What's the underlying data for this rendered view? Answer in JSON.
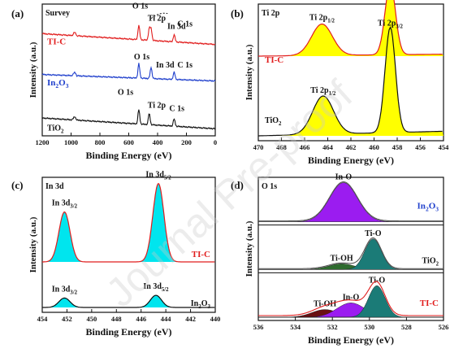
{
  "watermark": "Journal Pre-proof",
  "chart_data": [
    {
      "type": "line",
      "panel_label": "(a)",
      "title": "Survey",
      "xlabel": "Binding Energy (eV)",
      "ylabel": "Intensity (a.u.)",
      "xlim": [
        1200,
        0
      ],
      "x_reversed": true,
      "xticks": [
        1200,
        1000,
        800,
        600,
        400,
        200,
        0
      ],
      "series": [
        {
          "name": "TI-C",
          "color": "#e11d1d",
          "baseline": 0.78,
          "peaks": [
            {
              "label": "O 1s",
              "x": 530
            },
            {
              "label": "Ti 2p",
              "x": 458
            },
            {
              "label": "In 3d",
              "x": 445
            },
            {
              "label": "C 1s",
              "x": 285
            }
          ]
        },
        {
          "name": "In2O3",
          "color": "#1f3fcc",
          "baseline": 0.47,
          "peaks": [
            {
              "label": "O 1s",
              "x": 530
            },
            {
              "label": "In 3d",
              "x": 445
            },
            {
              "label": "C 1s",
              "x": 285
            }
          ]
        },
        {
          "name": "TiO2",
          "color": "#111111",
          "baseline": 0.14,
          "peaks": [
            {
              "label": "O 1s",
              "x": 530
            },
            {
              "label": "Ti 2p",
              "x": 458
            },
            {
              "label": "C 1s",
              "x": 285
            }
          ]
        }
      ],
      "annotations": [
        "O 1s",
        "Ti 2p",
        "In 3d",
        "C 1s",
        "O 1s",
        "In 3d",
        "C 1s",
        "O 1s",
        "Ti 2p",
        "C 1s"
      ],
      "legend": [
        "TI-C",
        "In2O3",
        "TiO2"
      ]
    },
    {
      "type": "line",
      "panel_label": "(b)",
      "title": "Ti 2p",
      "xlabel": "Binding Energy (eV)",
      "ylabel": "Intensity (a.u.)",
      "xlim": [
        470,
        454
      ],
      "x_reversed": true,
      "xticks": [
        470,
        468,
        466,
        464,
        462,
        460,
        458,
        456,
        454
      ],
      "series": [
        {
          "name": "TI-C",
          "color": "#e11d1d",
          "fill": "#ffff00",
          "peaks": [
            {
              "label": "Ti 2p1/2",
              "x": 464.5,
              "height": 0.23
            },
            {
              "label": "Ti 2p3/2",
              "x": 458.6,
              "height": 0.52
            }
          ]
        },
        {
          "name": "TiO2",
          "color": "#111111",
          "fill": "#ffff00",
          "peaks": [
            {
              "label": "Ti 2p1/2",
              "x": 464.4,
              "height": 0.28
            },
            {
              "label": "Ti 2p3/2",
              "x": 458.6,
              "height": 0.77
            }
          ]
        }
      ],
      "legend": [
        "TI-C",
        "TiO2"
      ]
    },
    {
      "type": "line",
      "panel_label": "(c)",
      "title": "In 3d",
      "xlabel": "Binding Energy (eV)",
      "ylabel": "Intensity (a.u.)",
      "xlim": [
        454,
        440
      ],
      "x_reversed": true,
      "xticks": [
        454,
        452,
        450,
        448,
        446,
        444,
        442,
        440
      ],
      "series": [
        {
          "name": "TI-C",
          "color": "#e11d1d",
          "fill": "#00e5ee",
          "peaks": [
            {
              "label": "In 3d3/2",
              "x": 452.2,
              "height": 0.37
            },
            {
              "label": "In 3d5/2",
              "x": 444.6,
              "height": 0.58
            }
          ]
        },
        {
          "name": "In2O3",
          "color": "#111111",
          "fill": "#00e5ee",
          "peaks": [
            {
              "label": "In 3d3/2",
              "x": 452.2,
              "height": 0.07
            },
            {
              "label": "In 3d5/2",
              "x": 444.8,
              "height": 0.09
            }
          ]
        }
      ],
      "legend": [
        "TI-C",
        "In2O3"
      ]
    },
    {
      "type": "area",
      "panel_label": "(d)",
      "title": "O 1s",
      "xlabel": "Binding Energy (eV)",
      "ylabel": "Intensity (a.u.)",
      "xlim": [
        536,
        526
      ],
      "x_reversed": true,
      "xticks": [
        536,
        534,
        532,
        530,
        528,
        526
      ],
      "subpanels": [
        {
          "name": "In2O3",
          "components": [
            {
              "label": "In-O",
              "x": 531.4,
              "height": 0.82,
              "color": "#9b1cf0"
            }
          ]
        },
        {
          "name": "TiO2",
          "components": [
            {
              "label": "Ti-OH",
              "x": 531.5,
              "height": 0.12,
              "color": "#2e6b2e"
            },
            {
              "label": "Ti-O",
              "x": 529.8,
              "height": 0.64,
              "color": "#1b7b77"
            }
          ]
        },
        {
          "name": "TI-C",
          "components": [
            {
              "label": "Ti-OH",
              "x": 532.4,
              "height": 0.16,
              "color": "#6b0f12"
            },
            {
              "label": "In-O",
              "x": 531.0,
              "height": 0.3,
              "color": "#9b1cf0"
            },
            {
              "label": "Ti-O",
              "x": 529.6,
              "height": 0.66,
              "color": "#1b7b77"
            }
          ]
        }
      ],
      "legend": [
        "In2O3",
        "TiO2",
        "TI-C"
      ]
    }
  ]
}
